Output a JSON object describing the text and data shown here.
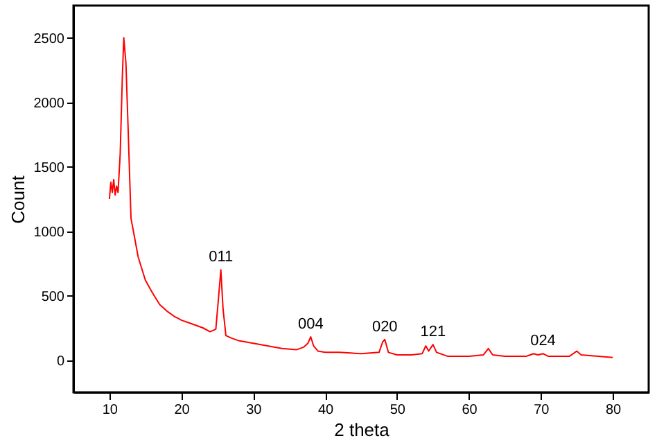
{
  "chart_data": {
    "type": "line",
    "xlabel": "2 theta",
    "ylabel": "Count",
    "x": [
      10,
      10.2,
      10.4,
      10.6,
      10.8,
      11,
      11.2,
      11.5,
      11.8,
      12,
      12.3,
      12.6,
      13,
      13.5,
      14,
      15,
      16,
      17,
      18,
      19,
      20,
      21,
      22,
      23,
      24,
      24.8,
      25.2,
      25.5,
      25.8,
      26.2,
      27,
      28,
      30,
      32,
      34,
      36,
      37,
      37.6,
      38,
      38.4,
      39,
      40,
      42,
      45,
      47.5,
      48,
      48.3,
      48.8,
      50,
      52,
      53.5,
      54,
      54.4,
      55,
      55.5,
      57,
      60,
      62,
      62.7,
      63.3,
      65,
      68,
      69,
      69.6,
      70.3,
      71,
      74,
      75,
      75.6,
      78,
      80
    ],
    "series": [
      {
        "color": "#ff0000",
        "values": [
          1250,
          1380,
          1300,
          1400,
          1280,
          1350,
          1300,
          1600,
          2200,
          2500,
          2300,
          1800,
          1100,
          950,
          800,
          620,
          520,
          430,
          380,
          340,
          310,
          290,
          270,
          250,
          220,
          240,
          500,
          700,
          400,
          190,
          170,
          150,
          130,
          110,
          90,
          80,
          100,
          130,
          180,
          110,
          70,
          60,
          60,
          50,
          60,
          140,
          160,
          60,
          40,
          40,
          50,
          110,
          70,
          120,
          60,
          30,
          30,
          40,
          90,
          40,
          30,
          30,
          50,
          40,
          50,
          30,
          30,
          70,
          40,
          30,
          20
        ]
      }
    ],
    "xlim": [
      5,
      85
    ],
    "xticks": [
      10,
      20,
      30,
      40,
      50,
      60,
      70,
      80
    ],
    "ylim": [
      -250,
      2750
    ],
    "yticks": [
      0,
      500,
      1000,
      1500,
      2000,
      2500
    ],
    "marker": "none",
    "grid": false,
    "legend": false,
    "annotations": [
      {
        "text": "011",
        "x": 25.5,
        "y": 700
      },
      {
        "text": "004",
        "x": 38,
        "y": 180
      },
      {
        "text": "020",
        "x": 48.3,
        "y": 160
      },
      {
        "text": "121",
        "x": 55,
        "y": 120
      },
      {
        "text": "024",
        "x": 70.3,
        "y": 50
      }
    ]
  }
}
